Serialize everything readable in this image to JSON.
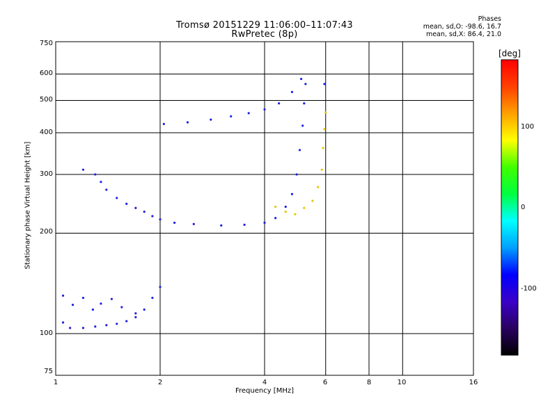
{
  "chart_data": {
    "type": "scatter",
    "title": "Tromsø 20151229 11:06:00–11:07:43",
    "subtitle": "RwPretec (8p)",
    "xlabel": "Frequency [MHz]",
    "ylabel": "Stationary phase Virtual Height [km]",
    "x_scale": "log",
    "y_scale": "log",
    "xlim": [
      1,
      16
    ],
    "ylim": [
      75,
      750
    ],
    "x_ticks": [
      "1",
      "2",
      "4",
      "6",
      "8",
      "10",
      "16"
    ],
    "y_ticks": [
      "750",
      "600",
      "500",
      "400",
      "300",
      "200",
      "100",
      "75"
    ],
    "grid": true,
    "stats": {
      "heading": "Phases",
      "line1": "mean, sd,O: -98.6, 16.7",
      "line2": "mean, sd,X:  86.4, 21.0"
    },
    "colorbar": {
      "label": "[deg]",
      "range": [
        -180,
        180
      ],
      "ticks": [
        "100",
        "0",
        "-100"
      ],
      "colors": [
        "#000000",
        "#2a0060",
        "#3a00c8",
        "#0000ff",
        "#00a0ff",
        "#00ffff",
        "#00ff40",
        "#40ff00",
        "#ffff00",
        "#ffa000",
        "#ff4000",
        "#ff0000"
      ]
    },
    "series": [
      {
        "values": [
          [
            1.05,
            108
          ],
          [
            1.1,
            104
          ],
          [
            1.2,
            104
          ],
          [
            1.3,
            105
          ],
          [
            1.4,
            106
          ],
          [
            1.5,
            107
          ],
          [
            1.6,
            109
          ],
          [
            1.7,
            112
          ],
          [
            1.8,
            118
          ],
          [
            1.9,
            128
          ],
          [
            2.0,
            138
          ],
          [
            1.05,
            130
          ],
          [
            1.12,
            122
          ],
          [
            1.2,
            128
          ],
          [
            1.28,
            118
          ],
          [
            1.35,
            123
          ],
          [
            1.45,
            127
          ],
          [
            1.55,
            120
          ],
          [
            1.7,
            115
          ],
          [
            1.2,
            310
          ],
          [
            1.3,
            300
          ],
          [
            1.35,
            285
          ],
          [
            1.4,
            270
          ],
          [
            1.5,
            255
          ],
          [
            1.6,
            245
          ],
          [
            1.7,
            238
          ],
          [
            1.8,
            232
          ],
          [
            1.9,
            225
          ],
          [
            2.0,
            220
          ],
          [
            2.2,
            215
          ],
          [
            2.5,
            213
          ],
          [
            3.0,
            211
          ],
          [
            3.5,
            212
          ],
          [
            4.0,
            215
          ],
          [
            4.3,
            222
          ],
          [
            4.6,
            240
          ],
          [
            4.8,
            262
          ],
          [
            4.95,
            300
          ],
          [
            5.05,
            355
          ],
          [
            5.15,
            420
          ],
          [
            5.2,
            490
          ],
          [
            5.25,
            560
          ],
          [
            2.05,
            425
          ],
          [
            2.4,
            430
          ],
          [
            2.8,
            438
          ],
          [
            3.2,
            448
          ],
          [
            3.6,
            458
          ],
          [
            4.0,
            470
          ],
          [
            4.4,
            490
          ],
          [
            4.8,
            530
          ],
          [
            5.1,
            580
          ],
          [
            4.3,
            240
          ],
          [
            4.6,
            232
          ],
          [
            4.9,
            228
          ],
          [
            5.2,
            238
          ],
          [
            5.5,
            250
          ],
          [
            5.7,
            275
          ],
          [
            5.85,
            310
          ],
          [
            5.9,
            360
          ],
          [
            5.95,
            410
          ],
          [
            6.0,
            460
          ],
          [
            5.95,
            560
          ]
        ]
      }
    ]
  }
}
